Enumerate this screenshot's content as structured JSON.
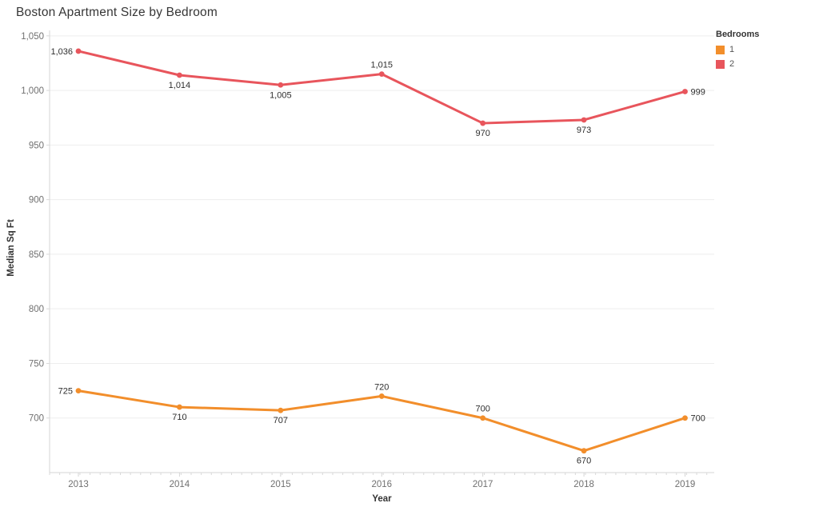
{
  "page_title": "Boston Apartment Size by Bedroom",
  "legend": {
    "title": "Bedrooms"
  },
  "chart_data": {
    "type": "line",
    "title": "Boston Apartment Size by Bedroom",
    "xlabel": "Year",
    "ylabel": "Median Sq Ft",
    "legend_title": "Bedrooms",
    "legend_position": "top-right",
    "grid": "horizontal",
    "categories": [
      "2013",
      "2014",
      "2015",
      "2016",
      "2017",
      "2018",
      "2019"
    ],
    "y_ticks": [
      700,
      750,
      800,
      850,
      900,
      950,
      1000,
      1050
    ],
    "y_tick_labels": [
      "700",
      "750",
      "800",
      "850",
      "900",
      "950",
      "1,000",
      "1,050"
    ],
    "ylim": [
      650,
      1055
    ],
    "series": [
      {
        "name": "1",
        "color": "#f28e2b",
        "values": [
          725,
          710,
          707,
          720,
          700,
          670,
          700
        ],
        "labels": [
          "725",
          "710",
          "707",
          "720",
          "700",
          "670",
          "700"
        ],
        "label_positions": [
          "left",
          "below",
          "below",
          "above",
          "above",
          "below",
          "right"
        ]
      },
      {
        "name": "2",
        "color": "#e8555c",
        "values": [
          1036,
          1014,
          1005,
          1015,
          970,
          973,
          999
        ],
        "labels": [
          "1,036",
          "1,014",
          "1,005",
          "1,015",
          "970",
          "973",
          "999"
        ],
        "label_positions": [
          "left",
          "below",
          "below",
          "above",
          "below",
          "below",
          "right"
        ]
      }
    ],
    "colors": {
      "gridline": "#ededed",
      "axis_line": "#d6d6d6",
      "tick_mark": "#d9d9d9",
      "tick_label": "#707070",
      "data_label": "#2e2e2e",
      "axis_title": "#333333",
      "title": "#363636"
    }
  }
}
